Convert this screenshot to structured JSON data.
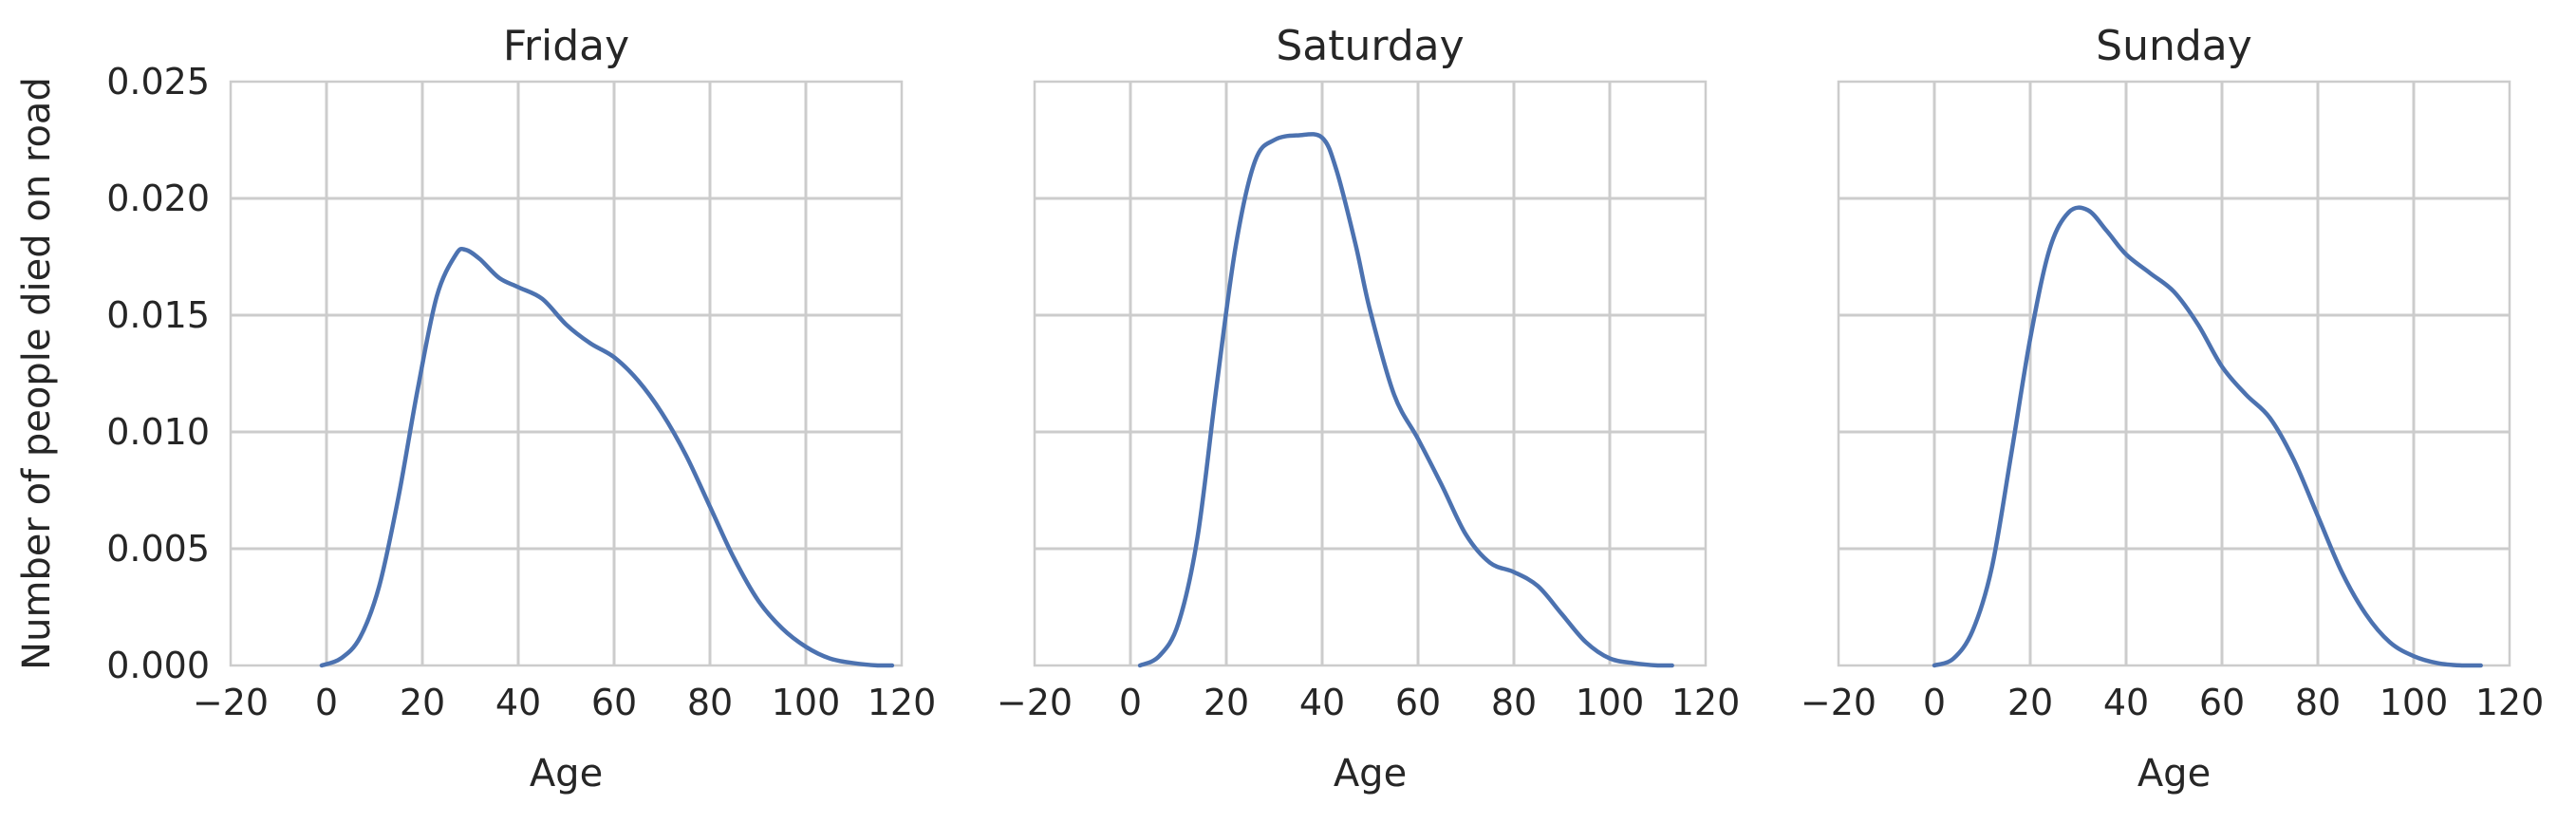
{
  "chart_data": {
    "type": "line",
    "ylabel": "Number of people died on road",
    "xlim": [
      -20,
      120
    ],
    "ylim": [
      0,
      0.025
    ],
    "xticks": [
      -20,
      0,
      20,
      40,
      60,
      80,
      100,
      120
    ],
    "xtick_labels": [
      "−20",
      "0",
      "20",
      "40",
      "60",
      "80",
      "100",
      "120"
    ],
    "yticks": [
      0,
      0.005,
      0.01,
      0.015,
      0.02,
      0.025
    ],
    "ytick_labels": [
      "0.000",
      "0.005",
      "0.010",
      "0.015",
      "0.020",
      "0.025"
    ],
    "grid": true,
    "line_color": "#4c72b0",
    "panels": [
      {
        "title": "Friday",
        "xlabel": "Age",
        "x": [
          -1,
          3,
          7,
          11,
          15,
          19,
          23,
          27,
          29,
          32,
          36,
          40,
          45,
          50,
          55,
          60,
          65,
          70,
          75,
          80,
          85,
          90,
          95,
          100,
          105,
          110,
          115,
          118
        ],
        "y": [
          0.0,
          0.0003,
          0.0012,
          0.0034,
          0.0072,
          0.0118,
          0.0158,
          0.0176,
          0.0178,
          0.0174,
          0.0166,
          0.0162,
          0.0157,
          0.0146,
          0.0138,
          0.0132,
          0.0122,
          0.0108,
          0.009,
          0.0068,
          0.0046,
          0.0028,
          0.0016,
          0.0008,
          0.0003,
          0.0001,
          0.0,
          0.0
        ]
      },
      {
        "title": "Saturday",
        "xlabel": "Age",
        "x": [
          2,
          6,
          10,
          14,
          18,
          22,
          26,
          30,
          35,
          40,
          43,
          47,
          50,
          55,
          60,
          65,
          70,
          75,
          80,
          85,
          90,
          95,
          100,
          105,
          110,
          113
        ],
        "y": [
          0.0,
          0.0004,
          0.0018,
          0.0055,
          0.012,
          0.018,
          0.0216,
          0.0225,
          0.0227,
          0.0226,
          0.0212,
          0.018,
          0.0152,
          0.0116,
          0.0097,
          0.0077,
          0.0056,
          0.0044,
          0.004,
          0.0034,
          0.0022,
          0.001,
          0.0003,
          0.0001,
          0.0,
          0.0
        ]
      },
      {
        "title": "Sunday",
        "xlabel": "Age",
        "x": [
          0,
          4,
          8,
          12,
          16,
          20,
          24,
          28,
          32,
          36,
          40,
          45,
          50,
          55,
          60,
          65,
          70,
          75,
          80,
          85,
          90,
          95,
          100,
          105,
          110,
          114
        ],
        "y": [
          0.0,
          0.0003,
          0.0015,
          0.0042,
          0.009,
          0.014,
          0.0178,
          0.0194,
          0.0195,
          0.0186,
          0.0176,
          0.0168,
          0.016,
          0.0146,
          0.0128,
          0.0116,
          0.0106,
          0.0088,
          0.0064,
          0.004,
          0.0022,
          0.001,
          0.0004,
          0.0001,
          0.0,
          0.0
        ]
      }
    ]
  }
}
